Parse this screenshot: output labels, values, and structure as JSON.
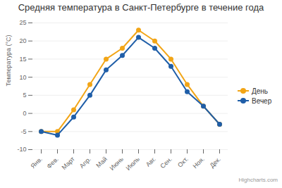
{
  "chart_data": {
    "type": "line",
    "title": "Средняя температура в Санкт-Петербурге в течение года",
    "y_label": "Температура (°C)",
    "credits": "Highcharts.com",
    "categories": [
      "Янв.",
      "Фев.",
      "Март",
      "Апр.",
      "Май",
      "Июнь",
      "Июль",
      "Авг.",
      "Сен.",
      "Окт.",
      "Ноя.",
      "Дек."
    ],
    "series": [
      {
        "name": "День",
        "color": "#f2a516",
        "values": [
          -5,
          -5,
          1,
          8,
          15,
          18,
          23,
          20,
          15,
          8,
          2,
          -3
        ]
      },
      {
        "name": "Вечер",
        "color": "#1f5ea8",
        "values": [
          -5,
          -6,
          -1,
          5,
          12,
          16,
          21,
          18,
          13,
          6,
          2,
          -3
        ]
      }
    ],
    "ylim": [
      -10,
      25
    ],
    "yticks": [
      -10,
      -5,
      0,
      5,
      10,
      15,
      20,
      25
    ],
    "grid": true,
    "legend": "right",
    "marker": "circle"
  }
}
